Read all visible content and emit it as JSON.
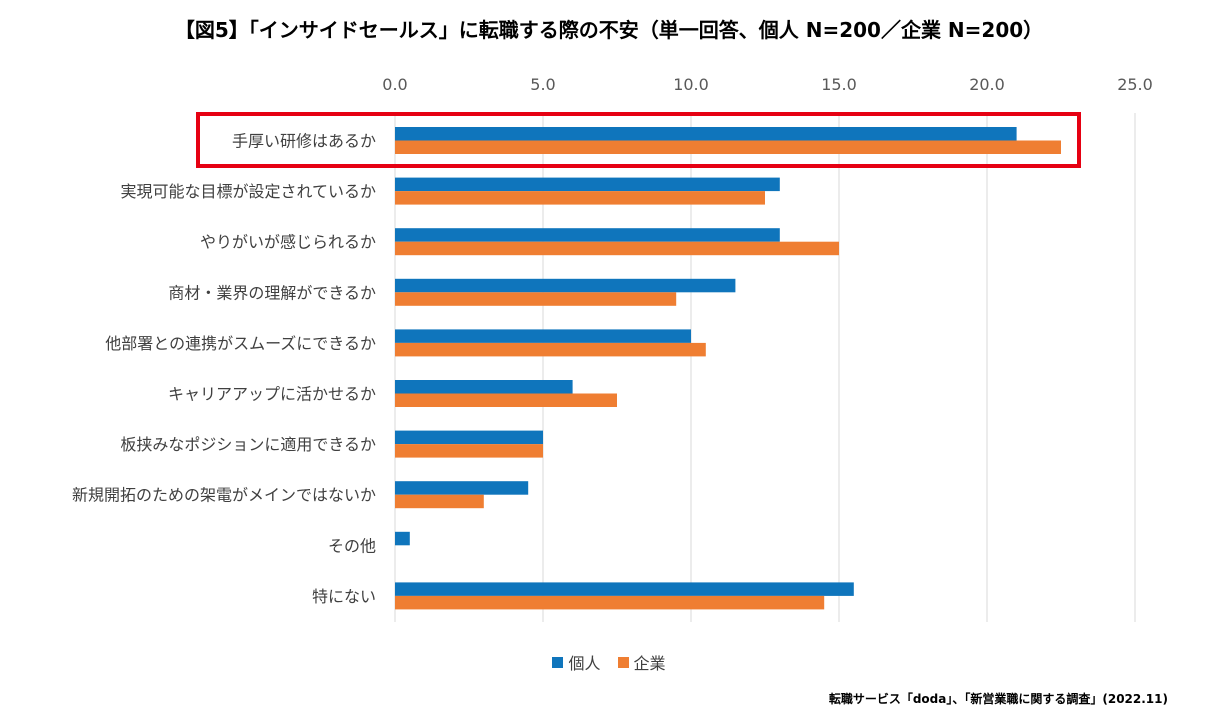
{
  "title": "【図5】「インサイドセールス」に転職する際の不安（単一回答、個人 N=200／企業 N=200）",
  "source": "転職サービス「doda」、「新営業職に関する調査」(2022.11)",
  "colors": {
    "individual": "#0F75BC",
    "company": "#EF7E32",
    "grid": "#D9D9D9",
    "highlight": "#E60012"
  },
  "chart_data": {
    "type": "bar",
    "orientation": "horizontal",
    "title": "【図5】「インサイドセールス」に転職する際の不安（単一回答、個人 N=200／企業 N=200）",
    "categories": [
      "手厚い研修はあるか",
      "実現可能な目標が設定されているか",
      "やりがいが感じられるか",
      "商材・業界の理解ができるか",
      "他部署との連携がスムーズにできるか",
      "キャリアアップに活かせるか",
      "板挟みなポジションに適用できるか",
      "新規開拓のための架電がメインではないか",
      "その他",
      "特にない"
    ],
    "series": [
      {
        "name": "個人",
        "values": [
          21.0,
          13.0,
          13.0,
          11.5,
          10.0,
          6.0,
          5.0,
          4.5,
          0.5,
          15.5
        ]
      },
      {
        "name": "企業",
        "values": [
          22.5,
          12.5,
          15.0,
          9.5,
          10.5,
          7.5,
          5.0,
          3.0,
          0.0,
          14.5
        ]
      }
    ],
    "xlim": [
      0,
      25
    ],
    "ticks": [
      "0.0",
      "5.0",
      "10.0",
      "15.0",
      "20.0",
      "25.0"
    ],
    "highlighted_category": "手厚い研修はあるか",
    "legend_position": "bottom",
    "grid": true
  }
}
